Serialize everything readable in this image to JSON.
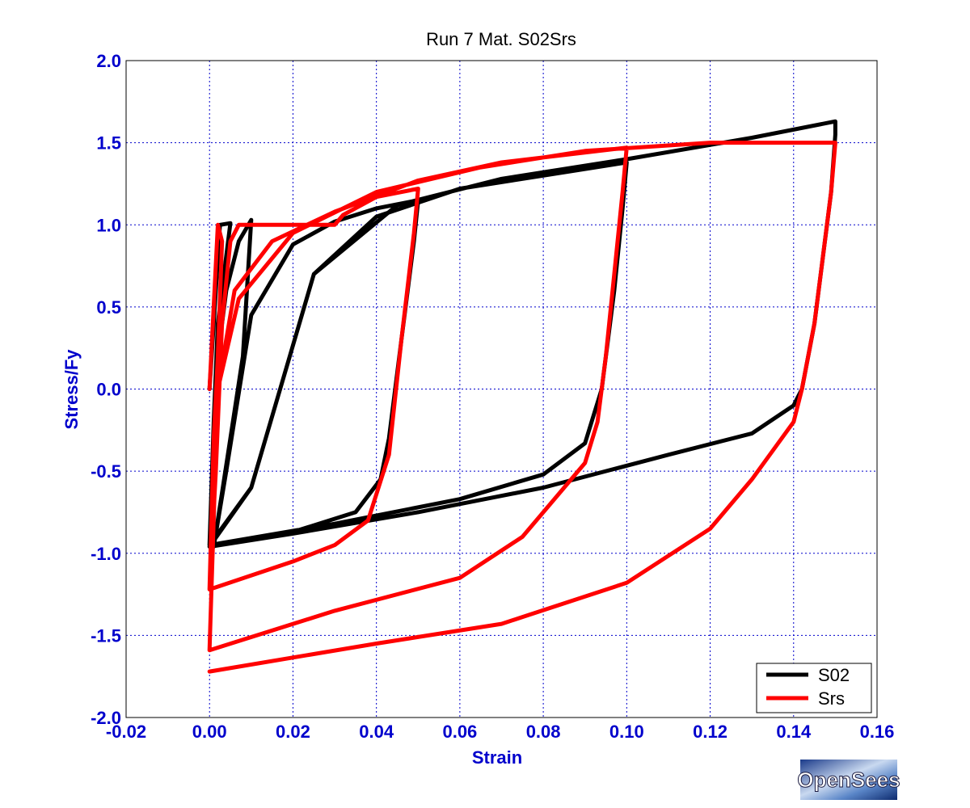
{
  "chart_data": {
    "type": "line",
    "title": "Run 7    Mat. S02Srs",
    "xlabel": "Strain",
    "ylabel": "Stress/Fy",
    "xlim": [
      -0.02,
      0.16
    ],
    "ylim": [
      -2.0,
      2.0
    ],
    "xticks": [
      -0.02,
      0.0,
      0.02,
      0.04,
      0.06,
      0.08,
      0.1,
      0.12,
      0.14,
      0.16
    ],
    "xtick_labels": [
      "-0.02",
      "0.00",
      "0.02",
      "0.04",
      "0.06",
      "0.08",
      "0.10",
      "0.12",
      "0.14",
      "0.16"
    ],
    "yticks": [
      -2.0,
      -1.5,
      -1.0,
      -0.5,
      0.0,
      0.5,
      1.0,
      1.5,
      2.0
    ],
    "ytick_labels": [
      "-2.0",
      "-1.5",
      "-1.0",
      "-0.5",
      "0.0",
      "0.5",
      "1.0",
      "1.5",
      "2.0"
    ],
    "grid": true,
    "legend_position": "bottom-right",
    "series": [
      {
        "name": "S02",
        "color": "#000000",
        "points": [
          [
            0.0,
            0.0
          ],
          [
            0.0025,
            1.0
          ],
          [
            0.005,
            1.01
          ],
          [
            0.002,
            0.4
          ],
          [
            0.001,
            -0.2
          ],
          [
            0.0,
            -0.95
          ],
          [
            0.0005,
            -0.95
          ],
          [
            0.002,
            0.2
          ],
          [
            0.004,
            0.6
          ],
          [
            0.007,
            0.9
          ],
          [
            0.01,
            1.03
          ],
          [
            0.008,
            0.2
          ],
          [
            0.005,
            -0.3
          ],
          [
            0.001,
            -0.96
          ],
          [
            0.004,
            -0.5
          ],
          [
            0.01,
            0.45
          ],
          [
            0.02,
            0.88
          ],
          [
            0.03,
            1.02
          ],
          [
            0.04,
            1.1
          ],
          [
            0.05,
            1.15
          ],
          [
            0.049,
            0.9
          ],
          [
            0.046,
            0.3
          ],
          [
            0.043,
            -0.3
          ],
          [
            0.041,
            -0.55
          ],
          [
            0.035,
            -0.75
          ],
          [
            0.02,
            -0.87
          ],
          [
            0.0,
            -0.96
          ],
          [
            0.01,
            -0.6
          ],
          [
            0.025,
            0.7
          ],
          [
            0.04,
            1.05
          ],
          [
            0.06,
            1.22
          ],
          [
            0.08,
            1.3
          ],
          [
            0.1,
            1.38
          ],
          [
            0.099,
            1.1
          ],
          [
            0.097,
            0.6
          ],
          [
            0.094,
            0.0
          ],
          [
            0.09,
            -0.33
          ],
          [
            0.08,
            -0.52
          ],
          [
            0.06,
            -0.67
          ],
          [
            0.03,
            -0.82
          ],
          [
            0.0,
            -0.95
          ],
          [
            0.01,
            -0.6
          ],
          [
            0.025,
            0.7
          ],
          [
            0.045,
            1.12
          ],
          [
            0.07,
            1.28
          ],
          [
            0.1,
            1.4
          ],
          [
            0.13,
            1.53
          ],
          [
            0.15,
            1.63
          ],
          [
            0.15,
            1.55
          ],
          [
            0.149,
            1.2
          ],
          [
            0.147,
            0.8
          ],
          [
            0.145,
            0.4
          ],
          [
            0.142,
            0.0
          ],
          [
            0.14,
            -0.1
          ],
          [
            0.13,
            -0.27
          ],
          [
            0.11,
            -0.4
          ],
          [
            0.08,
            -0.6
          ],
          [
            0.05,
            -0.75
          ],
          [
            0.02,
            -0.88
          ],
          [
            0.0,
            -0.96
          ]
        ]
      },
      {
        "name": "Srs",
        "color": "#ff0000",
        "points": [
          [
            0.0,
            0.0
          ],
          [
            0.002,
            1.0
          ],
          [
            0.003,
            0.9
          ],
          [
            0.002,
            0.2
          ],
          [
            0.001,
            -0.3
          ],
          [
            0.0,
            -1.22
          ],
          [
            0.0015,
            -0.5
          ],
          [
            0.003,
            0.4
          ],
          [
            0.005,
            0.9
          ],
          [
            0.007,
            1.0
          ],
          [
            0.01,
            1.0
          ],
          [
            0.02,
            1.0
          ],
          [
            0.03,
            1.0
          ],
          [
            0.032,
            1.06
          ],
          [
            0.04,
            1.17
          ],
          [
            0.05,
            1.22
          ],
          [
            0.049,
            0.95
          ],
          [
            0.046,
            0.3
          ],
          [
            0.043,
            -0.4
          ],
          [
            0.038,
            -0.8
          ],
          [
            0.03,
            -0.95
          ],
          [
            0.02,
            -1.05
          ],
          [
            0.0,
            -1.22
          ],
          [
            0.002,
            0.0
          ],
          [
            0.006,
            0.6
          ],
          [
            0.015,
            0.9
          ],
          [
            0.03,
            1.08
          ],
          [
            0.05,
            1.27
          ],
          [
            0.07,
            1.38
          ],
          [
            0.1,
            1.47
          ],
          [
            0.099,
            1.2
          ],
          [
            0.097,
            0.7
          ],
          [
            0.095,
            0.2
          ],
          [
            0.093,
            -0.2
          ],
          [
            0.09,
            -0.45
          ],
          [
            0.085,
            -0.6
          ],
          [
            0.075,
            -0.9
          ],
          [
            0.06,
            -1.15
          ],
          [
            0.03,
            -1.35
          ],
          [
            0.0,
            -1.59
          ],
          [
            0.002,
            0.0
          ],
          [
            0.007,
            0.55
          ],
          [
            0.02,
            0.95
          ],
          [
            0.04,
            1.2
          ],
          [
            0.065,
            1.35
          ],
          [
            0.09,
            1.45
          ],
          [
            0.12,
            1.5
          ],
          [
            0.15,
            1.5
          ],
          [
            0.149,
            1.2
          ],
          [
            0.147,
            0.8
          ],
          [
            0.145,
            0.4
          ],
          [
            0.142,
            0.0
          ],
          [
            0.14,
            -0.2
          ],
          [
            0.13,
            -0.55
          ],
          [
            0.12,
            -0.85
          ],
          [
            0.1,
            -1.18
          ],
          [
            0.07,
            -1.43
          ],
          [
            0.04,
            -1.55
          ],
          [
            0.0,
            -1.72
          ]
        ]
      }
    ]
  },
  "logo": {
    "text": "OpenSees"
  }
}
